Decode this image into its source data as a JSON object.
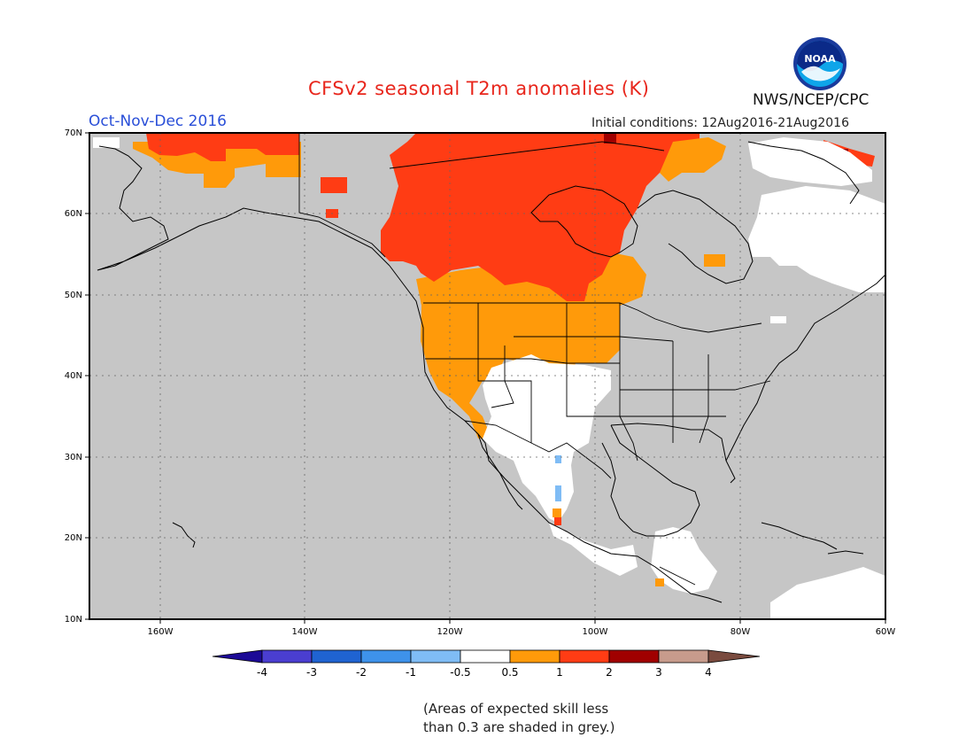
{
  "header": {
    "title": "CFSv2 seasonal T2m anomalies (K)",
    "period": "Oct-Nov-Dec 2016",
    "initial_conditions": "Initial conditions: 12Aug2016-21Aug2016",
    "agency": "NWS/NCEP/CPC",
    "logo_text": "NOAA"
  },
  "map": {
    "lat_labels": [
      "70N",
      "60N",
      "50N",
      "40N",
      "30N",
      "20N",
      "10N"
    ],
    "lon_labels": [
      "160W",
      "140W",
      "120W",
      "100W",
      "80W",
      "60W"
    ],
    "colors": {
      "grey": "#c6c6c6",
      "white": "#ffffff",
      "orange": "#ff9a0a",
      "red_orange": "#ff3c14",
      "dark_red": "#a00000",
      "light_blue": "#7fbcf5",
      "map_lines": "#000000"
    }
  },
  "colorbar": {
    "tick_labels": [
      "-4",
      "-3",
      "-2",
      "-1",
      "-0.5",
      "0.5",
      "1",
      "2",
      "3",
      "4"
    ],
    "colors": [
      "#1c0a96",
      "#4a3ed0",
      "#1f63d1",
      "#3e92ea",
      "#7fbcf5",
      "#ffffff",
      "#ff9a0a",
      "#ff3c14",
      "#a00000",
      "#c79b8c",
      "#7a4b3f"
    ]
  },
  "footnote": {
    "line1": "(Areas of expected skill less",
    "line2": "than 0.3 are shaded in grey.)"
  }
}
